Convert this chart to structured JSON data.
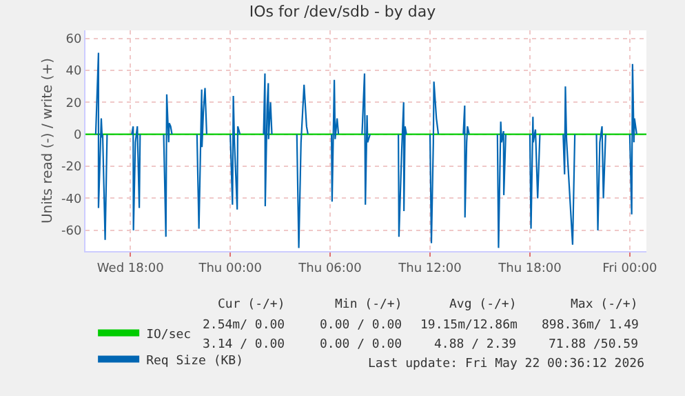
{
  "chart_data": {
    "type": "line",
    "title": "IOs for /dev/sdb - by day",
    "ylabel": "Units read (-) / write (+)",
    "xlim": [
      "2026-05-20T15:18",
      "2026-05-22T01:00"
    ],
    "ylim": [
      -73,
      65
    ],
    "xticks": [
      {
        "value": "2026-05-20T18:00",
        "label": "Wed 18:00"
      },
      {
        "value": "2026-05-21T00:00",
        "label": "Thu 00:00"
      },
      {
        "value": "2026-05-21T06:00",
        "label": "Thu 06:00"
      },
      {
        "value": "2026-05-21T12:00",
        "label": "Thu 12:00"
      },
      {
        "value": "2026-05-21T18:00",
        "label": "Thu 18:00"
      },
      {
        "value": "2026-05-22T00:00",
        "label": "Fri 00:00"
      }
    ],
    "yticks": [
      -60,
      -40,
      -20,
      0,
      20,
      40,
      60
    ],
    "grid": true,
    "legend": "bottom left",
    "line_style": "solid",
    "marker": "none",
    "series": [
      {
        "name": "IO/sec",
        "color": "#00cc00",
        "x": [
          "2026-05-20T15:18",
          "2026-05-22T01:00"
        ],
        "values": [
          0,
          0
        ]
      },
      {
        "name": "Req Size (KB)",
        "color": "#0066b3",
        "x": [
          "2026-05-20T15:55",
          "2026-05-20T16:05",
          "2026-05-20T16:05",
          "2026-05-20T16:15",
          "2026-05-20T16:18",
          "2026-05-20T16:20",
          "2026-05-20T16:29",
          "2026-05-20T16:36",
          "2026-05-20T17:00",
          "2026-05-20T18:05",
          "2026-05-20T18:10",
          "2026-05-20T18:11",
          "2026-05-20T18:18",
          "2026-05-20T18:25",
          "2026-05-20T18:32",
          "2026-05-20T18:35",
          "2026-05-20T19:00",
          "2026-05-20T20:00",
          "2026-05-20T20:08",
          "2026-05-20T20:11",
          "2026-05-20T20:18",
          "2026-05-20T20:20",
          "2026-05-20T20:25",
          "2026-05-20T20:30",
          "2026-05-20T21:00",
          "2026-05-20T22:00",
          "2026-05-20T22:07",
          "2026-05-20T22:17",
          "2026-05-20T22:18",
          "2026-05-20T22:23",
          "2026-05-20T22:29",
          "2026-05-20T22:35",
          "2026-05-20T23:00",
          "2026-05-21T00:00",
          "2026-05-21T00:08",
          "2026-05-21T00:11",
          "2026-05-21T00:15",
          "2026-05-21T00:25",
          "2026-05-21T00:27",
          "2026-05-21T00:35",
          "2026-05-21T01:00",
          "2026-05-21T02:00",
          "2026-05-21T02:05",
          "2026-05-21T02:06",
          "2026-05-21T02:13",
          "2026-05-21T02:17",
          "2026-05-21T02:18",
          "2026-05-21T02:25",
          "2026-05-21T02:30",
          "2026-05-21T03:00",
          "2026-05-21T04:00",
          "2026-05-21T04:07",
          "2026-05-21T04:15",
          "2026-05-21T04:26",
          "2026-05-21T04:35",
          "2026-05-21T04:40",
          "2026-05-21T05:00",
          "2026-05-21T06:05",
          "2026-05-21T06:07",
          "2026-05-21T06:15",
          "2026-05-21T06:18",
          "2026-05-21T06:25",
          "2026-05-21T06:30",
          "2026-05-21T07:00",
          "2026-05-21T07:55",
          "2026-05-21T08:04",
          "2026-05-21T08:07",
          "2026-05-21T08:13",
          "2026-05-21T08:15",
          "2026-05-21T08:24",
          "2026-05-21T09:00",
          "2026-05-21T10:06",
          "2026-05-21T10:08",
          "2026-05-21T10:18",
          "2026-05-21T10:25",
          "2026-05-21T10:26",
          "2026-05-21T10:30",
          "2026-05-21T10:35",
          "2026-05-21T11:00",
          "2026-05-21T12:00",
          "2026-05-21T12:05",
          "2026-05-21T12:12",
          "2026-05-21T12:14",
          "2026-05-21T12:23",
          "2026-05-21T12:30",
          "2026-05-21T13:00",
          "2026-05-21T14:00",
          "2026-05-21T14:05",
          "2026-05-21T14:06",
          "2026-05-21T14:12",
          "2026-05-21T14:15",
          "2026-05-21T14:21",
          "2026-05-21T15:00",
          "2026-05-21T16:03",
          "2026-05-21T16:07",
          "2026-05-21T16:15",
          "2026-05-21T16:18",
          "2026-05-21T16:25",
          "2026-05-21T16:26",
          "2026-05-21T16:33",
          "2026-05-21T17:00",
          "2026-05-21T18:00",
          "2026-05-21T18:04",
          "2026-05-21T18:11",
          "2026-05-21T18:12",
          "2026-05-21T18:20",
          "2026-05-21T18:28",
          "2026-05-21T18:36",
          "2026-05-21T19:00",
          "2026-05-21T20:00",
          "2026-05-21T20:05",
          "2026-05-21T20:08",
          "2026-05-21T20:12",
          "2026-05-21T20:34",
          "2026-05-21T20:42",
          "2026-05-21T21:00",
          "2026-05-21T22:00",
          "2026-05-21T22:05",
          "2026-05-21T22:12",
          "2026-05-21T22:20",
          "2026-05-21T22:25",
          "2026-05-21T22:33",
          "2026-05-21T23:00",
          "2026-05-22T00:00",
          "2026-05-22T00:07",
          "2026-05-22T00:10",
          "2026-05-22T00:15",
          "2026-05-22T00:17",
          "2026-05-22T00:25"
        ],
        "values": [
          0,
          51,
          -46,
          10,
          -2,
          0,
          -66,
          0,
          null,
          0,
          5,
          -60,
          -5,
          5,
          -46,
          0,
          null,
          0,
          -64,
          25,
          -5,
          7,
          5,
          0,
          null,
          0,
          -59,
          28,
          -8,
          14,
          29,
          0,
          null,
          0,
          -44,
          24,
          -5,
          -47,
          5,
          0,
          null,
          0,
          38,
          -45,
          18,
          32,
          -3,
          20,
          0,
          null,
          0,
          -71,
          -5,
          31,
          5,
          0,
          null,
          0,
          -42,
          34,
          -3,
          10,
          0,
          null,
          0,
          38,
          -44,
          12,
          -5,
          0,
          null,
          0,
          -64,
          -10,
          20,
          -48,
          5,
          0,
          null,
          0,
          -68,
          -5,
          33,
          10,
          0,
          null,
          0,
          18,
          -52,
          -5,
          5,
          0,
          null,
          0,
          -71,
          8,
          -5,
          2,
          -38,
          0,
          null,
          0,
          -59,
          11,
          -5,
          3,
          -40,
          0,
          null,
          0,
          -25,
          30,
          -3,
          -69,
          0,
          null,
          0,
          -60,
          -5,
          5,
          -40,
          0,
          null,
          0,
          -50,
          44,
          -5,
          10,
          0
        ]
      }
    ],
    "annotations": [
      "Cur (-/+)",
      "Min (-/+)",
      "Avg (-/+)",
      "Max (-/+)",
      "2.54m/ 0.00",
      "0.00 / 0.00",
      "19.15m/12.86m",
      "898.36m/ 1.49",
      "3.14 / 0.00",
      "0.00 / 0.00",
      "4.88 / 2.39",
      "71.88 /50.59",
      "Last update: Fri May 22 00:36:12 2026"
    ]
  }
}
